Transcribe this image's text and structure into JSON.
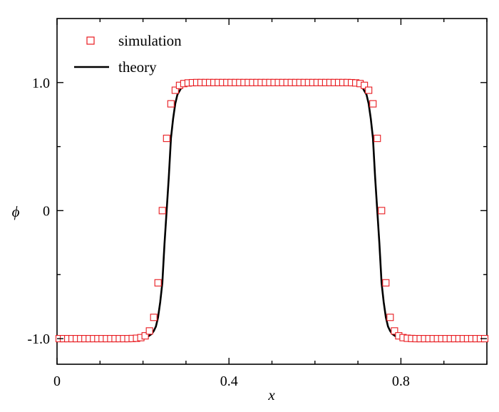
{
  "chart_data": {
    "type": "line",
    "xlabel": "x",
    "ylabel": "ϕ",
    "xlim": [
      0,
      1
    ],
    "ylim": [
      -1.2,
      1.5
    ],
    "x_ticks": [
      0,
      0.4,
      0.8
    ],
    "x_tick_labels": [
      "0",
      "0.4",
      "0.8"
    ],
    "y_ticks": [
      -1.0,
      0,
      1.0
    ],
    "y_tick_labels": [
      "-1.0",
      "0",
      "1.0"
    ],
    "grid": false,
    "legend_position": "top-left",
    "legend": [
      {
        "name": "simulation",
        "marker": "square",
        "color": "#e8191e"
      },
      {
        "name": "theory",
        "marker": "line",
        "color": "#000000"
      }
    ],
    "series": [
      {
        "name": "simulation",
        "style": "markers",
        "color": "#e8191e",
        "x": [
          0.005,
          0.015,
          0.025,
          0.035,
          0.045,
          0.055,
          0.065,
          0.075,
          0.085,
          0.095,
          0.105,
          0.115,
          0.125,
          0.135,
          0.145,
          0.155,
          0.165,
          0.175,
          0.185,
          0.195,
          0.205,
          0.215,
          0.225,
          0.235,
          0.245,
          0.255,
          0.265,
          0.275,
          0.285,
          0.295,
          0.305,
          0.315,
          0.325,
          0.335,
          0.345,
          0.355,
          0.365,
          0.375,
          0.385,
          0.395,
          0.405,
          0.415,
          0.425,
          0.435,
          0.445,
          0.455,
          0.465,
          0.475,
          0.485,
          0.495,
          0.505,
          0.515,
          0.525,
          0.535,
          0.545,
          0.555,
          0.565,
          0.575,
          0.585,
          0.595,
          0.605,
          0.615,
          0.625,
          0.635,
          0.645,
          0.655,
          0.665,
          0.675,
          0.685,
          0.695,
          0.705,
          0.715,
          0.725,
          0.735,
          0.745,
          0.755,
          0.765,
          0.775,
          0.785,
          0.795,
          0.805,
          0.815,
          0.825,
          0.835,
          0.845,
          0.855,
          0.865,
          0.875,
          0.885,
          0.895,
          0.905,
          0.915,
          0.925,
          0.935,
          0.945,
          0.955,
          0.965,
          0.975,
          0.985,
          0.995
        ],
        "values": [
          -1.0,
          -1.0,
          -1.0,
          -1.0,
          -1.0,
          -1.0,
          -1.0,
          -1.0,
          -1.0,
          -1.0,
          -1.0,
          -1.0,
          -1.0,
          -1.0,
          -1.0,
          -1.0,
          -1.0,
          -0.999,
          -0.997,
          -0.992,
          -0.978,
          -0.94,
          -0.834,
          -0.564,
          0.0,
          0.564,
          0.834,
          0.94,
          0.978,
          0.992,
          0.997,
          0.999,
          1.0,
          1.0,
          1.0,
          1.0,
          1.0,
          1.0,
          1.0,
          1.0,
          1.0,
          1.0,
          1.0,
          1.0,
          1.0,
          1.0,
          1.0,
          1.0,
          1.0,
          1.0,
          1.0,
          1.0,
          1.0,
          1.0,
          1.0,
          1.0,
          1.0,
          1.0,
          1.0,
          1.0,
          1.0,
          1.0,
          1.0,
          1.0,
          1.0,
          1.0,
          1.0,
          1.0,
          0.999,
          0.997,
          0.992,
          0.978,
          0.94,
          0.834,
          0.564,
          0.0,
          -0.564,
          -0.834,
          -0.94,
          -0.978,
          -0.992,
          -0.997,
          -0.999,
          -1.0,
          -1.0,
          -1.0,
          -1.0,
          -1.0,
          -1.0,
          -1.0,
          -1.0,
          -1.0,
          -1.0,
          -1.0,
          -1.0,
          -1.0,
          -1.0,
          -1.0,
          -1.0,
          -1.0
        ]
      },
      {
        "name": "theory",
        "style": "line",
        "color": "#000000",
        "x": [
          0,
          0.05,
          0.1,
          0.15,
          0.18,
          0.2,
          0.21,
          0.22,
          0.225,
          0.23,
          0.235,
          0.24,
          0.245,
          0.25,
          0.255,
          0.26,
          0.265,
          0.27,
          0.275,
          0.28,
          0.29,
          0.3,
          0.32,
          0.35,
          0.5,
          0.65,
          0.68,
          0.7,
          0.71,
          0.72,
          0.725,
          0.73,
          0.735,
          0.74,
          0.745,
          0.75,
          0.755,
          0.76,
          0.765,
          0.77,
          0.775,
          0.78,
          0.79,
          0.8,
          0.82,
          0.85,
          0.9,
          1.0
        ],
        "values": [
          -1.0,
          -1.0,
          -1.0,
          -1.0,
          -0.999,
          -0.995,
          -0.987,
          -0.964,
          -0.94,
          -0.905,
          -0.834,
          -0.716,
          -0.564,
          -0.26,
          0.0,
          0.26,
          0.564,
          0.716,
          0.834,
          0.905,
          0.964,
          0.987,
          0.998,
          1.0,
          1.0,
          1.0,
          0.998,
          0.987,
          0.964,
          0.905,
          0.834,
          0.716,
          0.564,
          0.26,
          0.0,
          -0.26,
          -0.564,
          -0.716,
          -0.834,
          -0.905,
          -0.94,
          -0.964,
          -0.987,
          -0.995,
          -0.999,
          -1.0,
          -1.0,
          -1.0
        ]
      }
    ]
  }
}
